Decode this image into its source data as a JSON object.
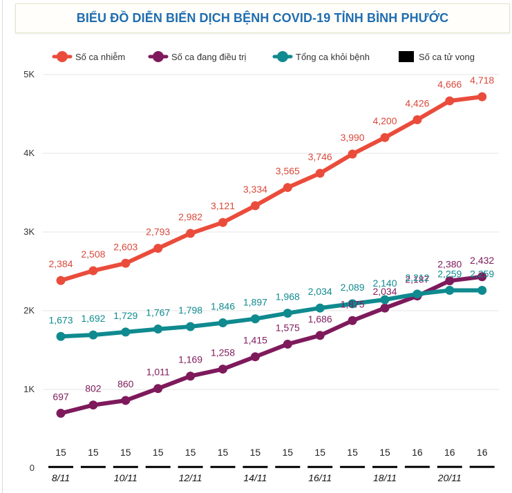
{
  "title": "BIỂU ĐỒ DIỄN BIẾN DỊCH BỆNH COVID-19 TỈNH BÌNH PHƯỚC",
  "chart_data": {
    "type": "line",
    "title": "BIỂU ĐỒ DIỄN BIẾN DỊCH BỆNH COVID-19 TỈNH BÌNH PHƯỚC",
    "xlabel": "",
    "ylabel": "",
    "ylim": [
      0,
      5000
    ],
    "yticks": [
      {
        "value": 0,
        "label": "0"
      },
      {
        "value": 1000,
        "label": "1K"
      },
      {
        "value": 2000,
        "label": "2K"
      },
      {
        "value": 3000,
        "label": "3K"
      },
      {
        "value": 4000,
        "label": "4K"
      },
      {
        "value": 5000,
        "label": "5K"
      }
    ],
    "categories": [
      "15",
      "15",
      "15",
      "15",
      "15",
      "15",
      "15",
      "15",
      "15",
      "15",
      "15",
      "16",
      "16",
      "16"
    ],
    "date_labels": [
      {
        "index": 0,
        "label": "8/11"
      },
      {
        "index": 2,
        "label": "10/11"
      },
      {
        "index": 4,
        "label": "12/11"
      },
      {
        "index": 6,
        "label": "14/11"
      },
      {
        "index": 8,
        "label": "16/11"
      },
      {
        "index": 10,
        "label": "18/11"
      },
      {
        "index": 12,
        "label": "20/11"
      }
    ],
    "grid": true,
    "legend_position": "top",
    "series": [
      {
        "name": "Số ca nhiễm",
        "color": "#ea4c3c",
        "label_color": "#d9483b",
        "values": [
          2384,
          2508,
          2603,
          2793,
          2982,
          3121,
          3334,
          3565,
          3746,
          3990,
          4200,
          4426,
          4666,
          4718
        ],
        "labels": [
          "2,384",
          "2,508",
          "2,603",
          "2,793",
          "2,982",
          "3,121",
          "3,334",
          "3,565",
          "3,746",
          "3,990",
          "4,200",
          "4,426",
          "4,666",
          "4,718"
        ]
      },
      {
        "name": "Số ca đang điều trị",
        "color": "#7e1a5c",
        "label_color": "#7e1a5c",
        "values": [
          697,
          802,
          860,
          1011,
          1169,
          1258,
          1415,
          1575,
          1686,
          1875,
          2034,
          2187,
          2380,
          2432
        ],
        "labels": [
          "697",
          "802",
          "860",
          "1,011",
          "1,169",
          "1,258",
          "1,415",
          "1,575",
          "1,686",
          "1,875",
          "2,034",
          "2,187",
          "2,380",
          "2,432"
        ]
      },
      {
        "name": "Tổng ca khỏi bệnh",
        "color": "#0f8a8f",
        "label_color": "#0f8a8f",
        "values": [
          1673,
          1692,
          1729,
          1767,
          1798,
          1846,
          1897,
          1968,
          2034,
          2089,
          2140,
          2212,
          2259,
          2259
        ],
        "labels": [
          "1,673",
          "1,692",
          "1,729",
          "1,767",
          "1,798",
          "1,846",
          "1,897",
          "1,968",
          "2,034",
          "2,089",
          "2,140",
          "2,212",
          "2,259",
          "2,259"
        ]
      },
      {
        "name": "Số ca tử vong",
        "color": "#000000",
        "label_color": "#000000",
        "values": [
          15,
          15,
          15,
          15,
          15,
          15,
          15,
          15,
          15,
          15,
          15,
          16,
          16,
          16
        ],
        "labels": [
          "15",
          "15",
          "15",
          "15",
          "15",
          "15",
          "15",
          "15",
          "15",
          "15",
          "15",
          "16",
          "16",
          "16"
        ]
      }
    ]
  }
}
